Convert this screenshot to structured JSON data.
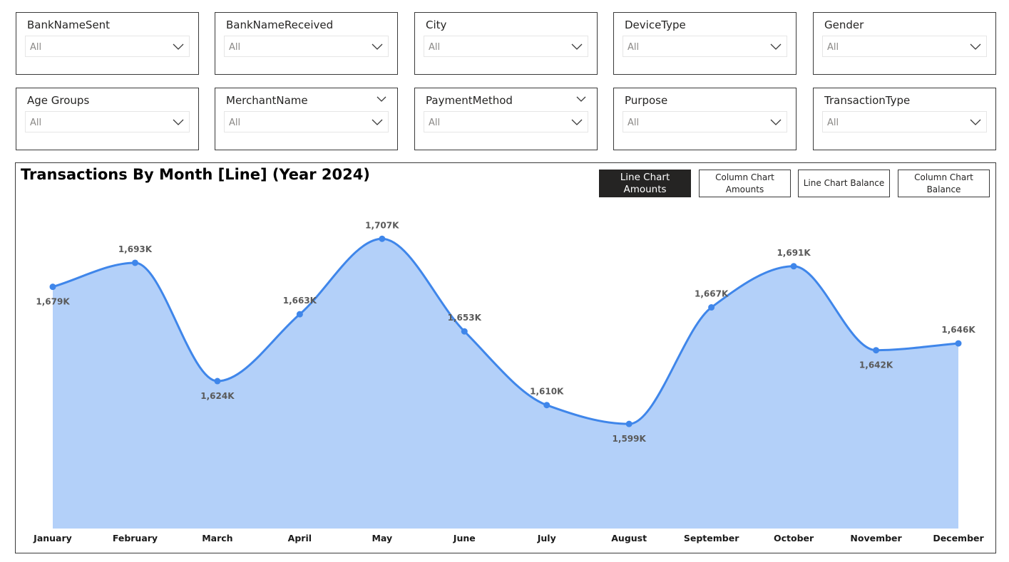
{
  "slicers": [
    {
      "title": "BankNameSent",
      "value": "All",
      "header_chevron": false
    },
    {
      "title": "BankNameReceived",
      "value": "All",
      "header_chevron": false
    },
    {
      "title": "City",
      "value": "All",
      "header_chevron": false
    },
    {
      "title": "DeviceType",
      "value": "All",
      "header_chevron": false
    },
    {
      "title": "Gender",
      "value": "All",
      "header_chevron": false
    },
    {
      "title": "Age Groups",
      "value": "All",
      "header_chevron": false
    },
    {
      "title": "MerchantName",
      "value": "All",
      "header_chevron": true
    },
    {
      "title": "PaymentMethod",
      "value": "All",
      "header_chevron": true
    },
    {
      "title": "Purpose",
      "value": "All",
      "header_chevron": false
    },
    {
      "title": "TransactionType",
      "value": "All",
      "header_chevron": false
    }
  ],
  "chart_panel": {
    "title": "Transactions By Month [Line] (Year 2024)",
    "buttons": [
      {
        "label": "Line Chart Amounts",
        "active": true
      },
      {
        "label": "Column Chart Amounts",
        "active": false
      },
      {
        "label": "Line Chart Balance",
        "active": false
      },
      {
        "label": "Column Chart Balance",
        "active": false
      }
    ]
  },
  "colors": {
    "line": "#3f86ea",
    "area": "#b3d0f9",
    "active_button": "#252423",
    "border": "#3a3a3a"
  },
  "icons": {
    "dropdown": "chevron-down-icon"
  },
  "chart_data": {
    "type": "area",
    "title": "Transactions By Month [Line] (Year 2024)",
    "categories": [
      "January",
      "February",
      "March",
      "April",
      "May",
      "June",
      "July",
      "August",
      "September",
      "October",
      "November",
      "December"
    ],
    "values": [
      1679,
      1693,
      1624,
      1663,
      1707,
      1653,
      1610,
      1599,
      1667,
      1691,
      1642,
      1646
    ],
    "labels": [
      "1,679K",
      "1,693K",
      "1,624K",
      "1,663K",
      "1,707K",
      "1,653K",
      "1,610K",
      "1,599K",
      "1,667K",
      "1,691K",
      "1,642K",
      "1,646K"
    ],
    "label_positions": [
      "below",
      "above",
      "below",
      "above",
      "above",
      "above",
      "above",
      "below",
      "above",
      "above",
      "below",
      "above"
    ],
    "units": "thousands",
    "ylim": [
      1538,
      1715
    ],
    "grid": false,
    "legend": "none",
    "smooth": true
  }
}
